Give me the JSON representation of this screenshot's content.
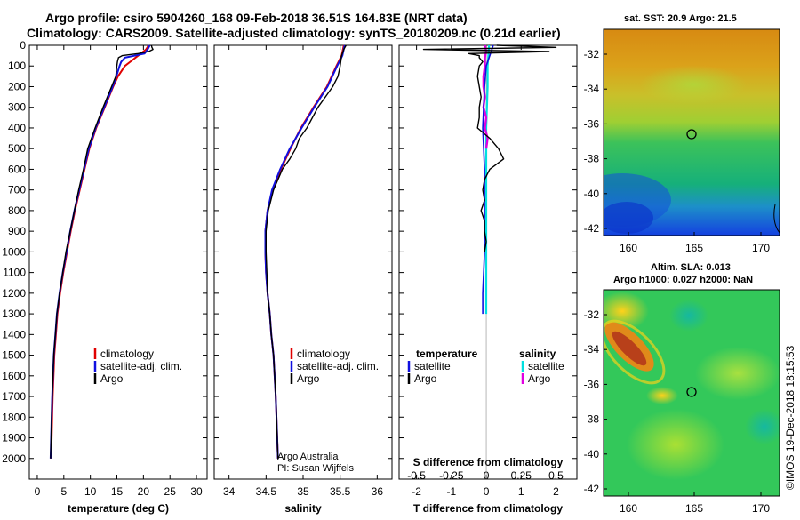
{
  "title": {
    "line1": "Argo profile: csiro 5904260_168 09-Feb-2018 36.51S 164.83E (NRT data)",
    "line2": "Climatology: CARS2009. Satellite-adjusted climatology: synTS_20180209.nc (0.21d earlier)"
  },
  "credit": {
    "line1": "Argo Australia",
    "line2": "PI: Susan Wijffels"
  },
  "imos_stamp": "©IMOS 19-Dec-2018 18:15:53",
  "maps": {
    "sst": {
      "title": "sat. SST: 20.9 Argo: 21.5"
    },
    "sla": {
      "title1": "Altim. SLA: 0.013",
      "title2": "Argo h1000: 0.027 h2000: NaN"
    },
    "xticks": [
      "160",
      "165",
      "170"
    ],
    "yticks": [
      "-32",
      "-34",
      "-36",
      "-38",
      "-40",
      "-42"
    ]
  },
  "colors": {
    "climatology": "#e00000",
    "satellite": "#1010e0",
    "argo": "#000000",
    "sal_satellite": "#00e0e0",
    "sal_argo": "#e000e0"
  },
  "chart_data": [
    {
      "type": "line",
      "id": "temperature",
      "xlabel": "temperature (deg C)",
      "ylabel": "",
      "xlim": [
        -1.5,
        32
      ],
      "ylim": [
        2100,
        0
      ],
      "xticks": [
        "0",
        "5",
        "10",
        "15",
        "20",
        "25",
        "30"
      ],
      "yticks": [
        "0",
        "100",
        "200",
        "300",
        "400",
        "500",
        "600",
        "700",
        "800",
        "900",
        "1000",
        "1100",
        "1200",
        "1300",
        "1400",
        "1500",
        "1600",
        "1700",
        "1800",
        "1900",
        "2000"
      ],
      "legend": [
        "climatology",
        "satellite-adj. clim.",
        "Argo"
      ],
      "series": [
        {
          "name": "climatology",
          "depth": [
            0,
            20,
            40,
            60,
            80,
            100,
            150,
            200,
            300,
            400,
            500,
            600,
            700,
            800,
            900,
            1000,
            1100,
            1200,
            1300,
            1400,
            1500,
            1700,
            2000
          ],
          "values": [
            21.0,
            20.5,
            19.5,
            18.5,
            17.5,
            16.5,
            15.2,
            14.3,
            12.7,
            11.1,
            9.8,
            8.9,
            8.0,
            7.1,
            6.3,
            5.6,
            4.9,
            4.3,
            3.8,
            3.5,
            3.2,
            2.9,
            2.6
          ]
        },
        {
          "name": "satellite-adj. clim.",
          "depth": [
            0,
            20,
            40,
            60,
            80,
            100,
            150,
            200,
            300,
            400,
            500,
            600,
            700,
            800,
            900,
            1000,
            1100,
            1200,
            1300,
            1400,
            1500,
            1700,
            2000
          ],
          "values": [
            21.2,
            20.8,
            20.2,
            16.5,
            15.8,
            15.5,
            14.9,
            14.2,
            12.6,
            11.0,
            9.7,
            8.8,
            7.9,
            7.0,
            6.2,
            5.5,
            4.8,
            4.2,
            3.7,
            3.4,
            3.1,
            2.8,
            2.5
          ]
        },
        {
          "name": "Argo",
          "depth": [
            0,
            10,
            20,
            30,
            40,
            50,
            60,
            80,
            100,
            150,
            200,
            300,
            400,
            500,
            600,
            700,
            800,
            900,
            1000,
            1100,
            1200,
            1300,
            1400,
            1500,
            1700,
            2000
          ],
          "values": [
            21.5,
            21.6,
            21.8,
            21.0,
            19.0,
            16.0,
            15.3,
            15.1,
            15.0,
            14.8,
            14.0,
            12.4,
            10.9,
            9.5,
            8.7,
            7.8,
            7.0,
            6.2,
            5.4,
            4.8,
            4.2,
            3.7,
            3.4,
            3.1,
            2.8,
            2.5
          ]
        }
      ]
    },
    {
      "type": "line",
      "id": "salinity",
      "xlabel": "salinity",
      "xlim": [
        33.8,
        36.2
      ],
      "ylim": [
        2100,
        0
      ],
      "xticks": [
        "34",
        "34.5",
        "35",
        "35.5",
        "36"
      ],
      "legend": [
        "climatology",
        "satellite-adj. clim.",
        "Argo"
      ],
      "series": [
        {
          "name": "climatology",
          "depth": [
            0,
            50,
            100,
            200,
            300,
            400,
            500,
            600,
            700,
            800,
            900,
            1000,
            1100,
            1200,
            1300,
            1400,
            1500,
            1700,
            2000
          ],
          "values": [
            35.55,
            35.52,
            35.45,
            35.32,
            35.14,
            34.97,
            34.83,
            34.7,
            34.59,
            34.52,
            34.49,
            34.49,
            34.5,
            34.52,
            34.55,
            34.57,
            34.6,
            34.63,
            34.66
          ]
        },
        {
          "name": "satellite-adj. clim.",
          "depth": [
            0,
            50,
            100,
            200,
            300,
            400,
            500,
            600,
            700,
            800,
            900,
            1000,
            1100,
            1200,
            1300,
            1400,
            1500,
            1700,
            2000
          ],
          "values": [
            35.56,
            35.53,
            35.46,
            35.33,
            35.15,
            34.98,
            34.82,
            34.69,
            34.58,
            34.52,
            34.49,
            34.49,
            34.5,
            34.52,
            34.55,
            34.57,
            34.6,
            34.63,
            34.66
          ]
        },
        {
          "name": "Argo",
          "depth": [
            0,
            20,
            50,
            100,
            150,
            200,
            250,
            300,
            400,
            450,
            500,
            550,
            600,
            700,
            800,
            900,
            1000,
            1100,
            1200,
            1300,
            1400,
            1500,
            1700,
            2000
          ],
          "values": [
            35.58,
            35.55,
            35.52,
            35.5,
            35.47,
            35.4,
            35.3,
            35.2,
            35.05,
            34.95,
            34.9,
            34.82,
            34.72,
            34.6,
            34.53,
            34.5,
            34.5,
            34.51,
            34.52,
            34.55,
            34.57,
            34.6,
            34.63,
            34.66
          ]
        }
      ]
    },
    {
      "type": "line",
      "id": "differences",
      "xlabel": "T difference from climatology",
      "xlabel2": "S difference from climatology",
      "xlim": [
        -2.5,
        2.6
      ],
      "x2lim": [
        -0.625,
        0.65
      ],
      "ylim": [
        2100,
        0
      ],
      "xticks": [
        "-2",
        "-1",
        "0",
        "1",
        "2"
      ],
      "x2ticks": [
        "-0.5",
        "-0.25",
        "0",
        "0.25",
        "0.5"
      ],
      "legend_left_title": "temperature",
      "legend_right_title": "salinity",
      "legend": [
        "satellite",
        "Argo",
        "satellite",
        "Argo"
      ],
      "series": [
        {
          "name": "temperature satellite",
          "depth": [
            0,
            50,
            100,
            200,
            400,
            600,
            800,
            1000,
            1200,
            1300
          ],
          "values": [
            0.2,
            0.1,
            0.0,
            -0.05,
            -0.1,
            -0.05,
            -0.05,
            -0.05,
            -0.1,
            -0.1
          ]
        },
        {
          "name": "temperature Argo",
          "depth": [
            0,
            10,
            20,
            30,
            40,
            50,
            60,
            80,
            100,
            150,
            200,
            250,
            300,
            350,
            400,
            450,
            500,
            550,
            600,
            650,
            700,
            750,
            800,
            850,
            900,
            950,
            1000
          ],
          "values": [
            0.3,
            2.0,
            -1.8,
            1.8,
            -0.5,
            -0.2,
            -0.2,
            -0.1,
            -0.2,
            -0.25,
            -0.2,
            -0.15,
            -0.2,
            -0.2,
            -0.25,
            0.1,
            0.35,
            0.5,
            0.1,
            -0.05,
            -0.1,
            -0.05,
            -0.15,
            -0.05,
            -0.05,
            0.0,
            -0.05
          ]
        },
        {
          "name": "salinity satellite",
          "depth": [
            0,
            100,
            200,
            400,
            600,
            800,
            1000,
            1200,
            1300
          ],
          "values": [
            0.02,
            0.01,
            0.01,
            0.0,
            0.0,
            0.0,
            0.0,
            0.0,
            0.0
          ]
        },
        {
          "name": "salinity Argo",
          "depth": [
            0,
            30,
            60,
            100,
            150,
            200,
            250,
            300,
            350,
            400,
            450,
            500
          ],
          "values": [
            -0.01,
            0.0,
            -0.01,
            -0.01,
            -0.02,
            -0.02,
            -0.01,
            -0.02,
            0.0,
            -0.01,
            0.01,
            0.0
          ]
        }
      ]
    }
  ]
}
